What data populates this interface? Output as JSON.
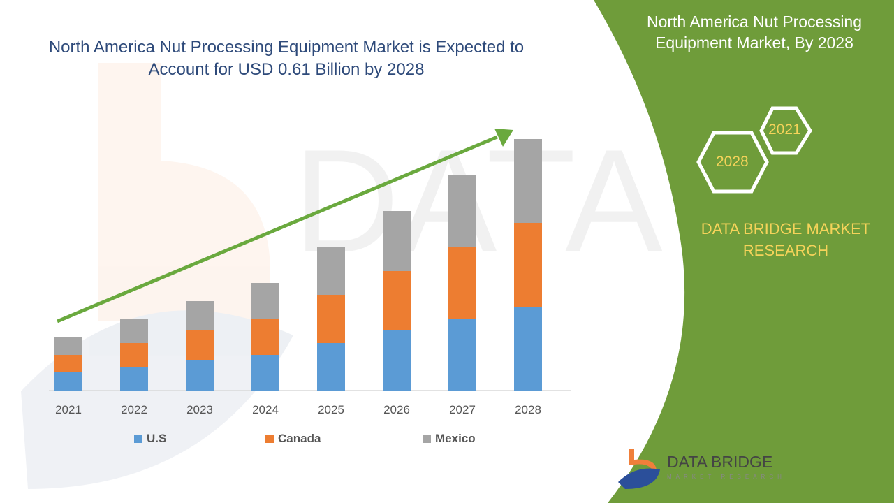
{
  "title": "North America Nut Processing Equipment Market is Expected to Account for USD 0.61 Billion by 2028",
  "side_panel": {
    "title": "North America Nut Processing Equipment Market, By 2028",
    "hex_years": [
      "2021",
      "2028"
    ],
    "brand": "DATA BRIDGE MARKET RESEARCH",
    "logo_text": "DATA BRIDGE",
    "logo_subtext": "MARKET RESEARCH",
    "color": "#6f9c3a"
  },
  "chart_data": {
    "type": "bar",
    "stacked": true,
    "categories": [
      "2021",
      "2022",
      "2023",
      "2024",
      "2025",
      "2026",
      "2027",
      "2028"
    ],
    "series": [
      {
        "name": "U.S",
        "color": "#5b9bd5",
        "values": [
          26,
          34,
          43,
          51,
          68,
          86,
          103,
          120
        ]
      },
      {
        "name": "Canada",
        "color": "#ed7d31",
        "values": [
          25,
          34,
          43,
          52,
          69,
          85,
          102,
          120
        ]
      },
      {
        "name": "Mexico",
        "color": "#a5a5a5",
        "values": [
          26,
          35,
          42,
          51,
          68,
          86,
          103,
          120
        ]
      }
    ],
    "trend_arrow_color": "#6aa93e",
    "legend_position": "bottom",
    "grid": false,
    "y_axis_shown": false
  }
}
